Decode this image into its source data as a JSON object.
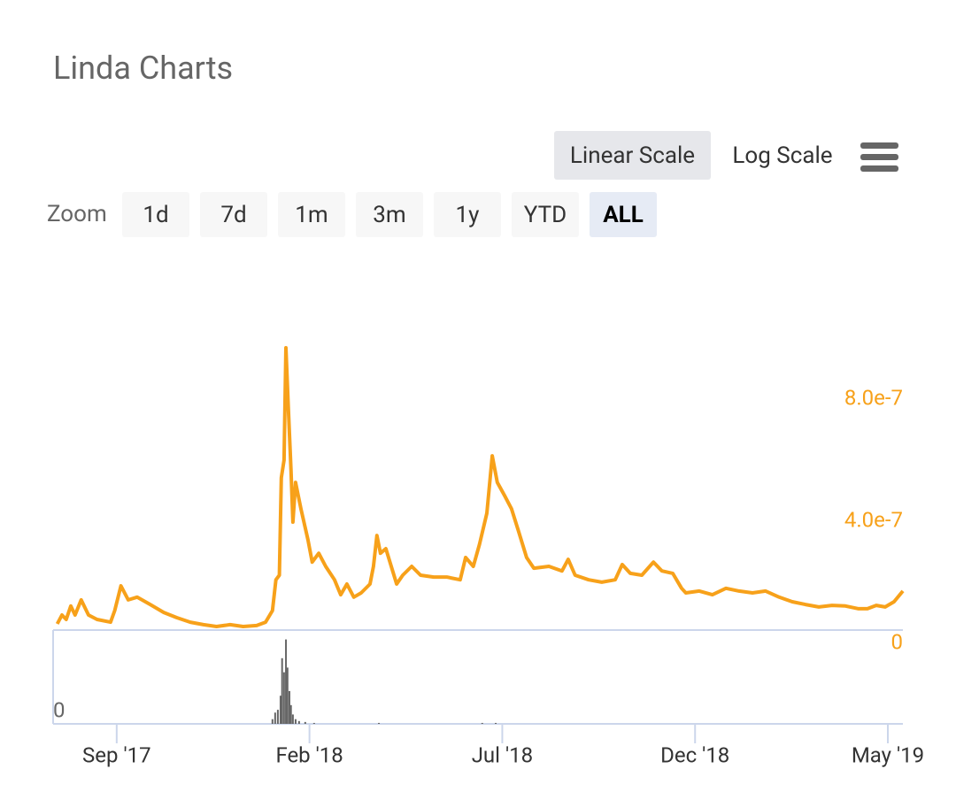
{
  "ui": {
    "scale_buttons": [
      "Linear Scale",
      "Log Scale"
    ],
    "zoom_label": "Zoom",
    "zoom_buttons": [
      "1d",
      "7d",
      "1m",
      "3m",
      "1y",
      "YTD",
      "ALL"
    ]
  },
  "chart_data": {
    "type": "line",
    "title": "Linda Charts",
    "xlim": [
      6.42,
      28.39
    ],
    "xticks": [
      {
        "value": 8,
        "label": "Sep '17"
      },
      {
        "value": 13,
        "label": "Feb '18"
      },
      {
        "value": 18,
        "label": "Jul '18"
      },
      {
        "value": 23,
        "label": "Dec '18"
      },
      {
        "value": 28,
        "label": "May '19"
      }
    ],
    "ylim": [
      0,
      1e-06
    ],
    "yticks": [
      {
        "value": 8e-07,
        "label": "8.0e-7"
      },
      {
        "value": 4e-07,
        "label": "4.0e-7"
      },
      0
    ],
    "y2lim": [
      0,
      100
    ],
    "y2ticks": [
      0
    ],
    "grid": false,
    "series": [
      {
        "color": "#f7a11a",
        "x": [
          6.46,
          6.58,
          6.69,
          6.81,
          6.92,
          7.08,
          7.27,
          7.49,
          7.84,
          7.95,
          8.11,
          8.3,
          8.53,
          8.87,
          9.22,
          9.56,
          9.91,
          10.25,
          10.59,
          10.94,
          11.28,
          11.63,
          11.86,
          12.04,
          12.13,
          12.22,
          12.27,
          12.34,
          12.39,
          12.45,
          12.52,
          12.57,
          12.64,
          12.78,
          12.96,
          13.07,
          13.24,
          13.42,
          13.65,
          13.81,
          13.97,
          14.15,
          14.34,
          14.57,
          14.66,
          14.75,
          14.84,
          14.98,
          15.12,
          15.26,
          15.42,
          15.65,
          15.88,
          16.22,
          16.56,
          16.91,
          17.05,
          17.25,
          17.41,
          17.6,
          17.74,
          17.87,
          18.06,
          18.24,
          18.42,
          18.63,
          18.82,
          19.21,
          19.55,
          19.71,
          19.89,
          20.24,
          20.58,
          20.93,
          21.11,
          21.32,
          21.62,
          21.92,
          22.14,
          22.42,
          22.65,
          22.76,
          23.11,
          23.45,
          23.8,
          24.14,
          24.49,
          24.83,
          25.18,
          25.52,
          25.86,
          26.21,
          26.55,
          26.9,
          27.24,
          27.47,
          27.7,
          27.93,
          28.16,
          28.39
        ],
        "values": [
          6.96e-08,
          9.86e-08,
          8.41e-08,
          1.28e-07,
          9.86e-08,
          1.48e-07,
          9.86e-08,
          8.41e-08,
          7.5e-08,
          1.13e-07,
          1.94e-07,
          1.48e-07,
          1.57e-07,
          1.33e-07,
          1.07e-07,
          9e-08,
          7.5e-08,
          6.7e-08,
          6.1e-08,
          6.7e-08,
          6.1e-08,
          6.4e-08,
          7.5e-08,
          1.13e-07,
          2.14e-07,
          2.29e-07,
          5.48e-07,
          6.06e-07,
          9.74e-07,
          7.8e-07,
          5.77e-07,
          4.03e-07,
          5.33e-07,
          4.46e-07,
          3.45e-07,
          2.72e-07,
          3.01e-07,
          2.58e-07,
          2.14e-07,
          1.65e-07,
          2e-07,
          1.57e-07,
          1.71e-07,
          2e-07,
          2.58e-07,
          3.59e-07,
          3.01e-07,
          3.16e-07,
          2.58e-07,
          2e-07,
          2.29e-07,
          2.58e-07,
          2.29e-07,
          2.23e-07,
          2.23e-07,
          2.14e-07,
          2.87e-07,
          2.58e-07,
          3.3e-07,
          4.32e-07,
          6.2e-07,
          5.33e-07,
          4.9e-07,
          4.46e-07,
          3.74e-07,
          2.87e-07,
          2.52e-07,
          2.58e-07,
          2.43e-07,
          2.81e-07,
          2.29e-07,
          2.14e-07,
          2.06e-07,
          2.14e-07,
          2.64e-07,
          2.35e-07,
          2.29e-07,
          2.72e-07,
          2.43e-07,
          2.35e-07,
          1.86e-07,
          1.71e-07,
          1.77e-07,
          1.65e-07,
          1.86e-07,
          1.77e-07,
          1.71e-07,
          1.77e-07,
          1.57e-07,
          1.42e-07,
          1.33e-07,
          1.25e-07,
          1.3e-07,
          1.28e-07,
          1.19e-07,
          1.19e-07,
          1.3e-07,
          1.25e-07,
          1.42e-07,
          1.77e-07
        ]
      },
      {
        "type": "column",
        "axis": "y2",
        "color": "#666666",
        "x": [
          12.04,
          12.11,
          12.18,
          12.25,
          12.29,
          12.34,
          12.39,
          12.43,
          12.48,
          12.52,
          12.57,
          12.64,
          12.73,
          12.89,
          13.12,
          14.8,
          17.48,
          17.83
        ],
        "values": [
          5,
          12,
          15,
          30,
          70,
          55,
          90,
          60,
          35,
          20,
          10,
          5,
          3,
          2,
          1,
          1,
          1,
          1
        ]
      }
    ]
  }
}
